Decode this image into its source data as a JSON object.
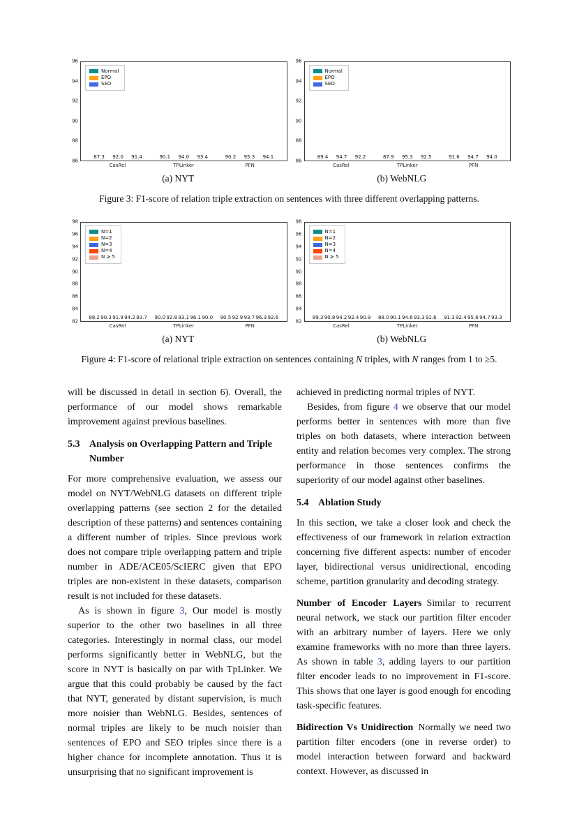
{
  "colors": {
    "teal": "#108C8D",
    "orange": "#FFA013",
    "blue": "#4169E1",
    "orangered": "#FF4500",
    "salmon": "#ECA18A",
    "link": "#3846b8"
  },
  "chart_data": [
    {
      "id": "figure3-nyt",
      "type": "bar",
      "subcaption": "(a) NYT",
      "categories": [
        "CasRel",
        "TPLinker",
        "PFN"
      ],
      "series": [
        {
          "name": "Normal",
          "color": "#108C8D",
          "values": [
            87.3,
            90.1,
            90.2
          ]
        },
        {
          "name": "EPO",
          "color": "#FFA013",
          "values": [
            92.0,
            94.0,
            95.3
          ]
        },
        {
          "name": "SEO",
          "color": "#4169E1",
          "values": [
            91.4,
            93.4,
            94.1
          ]
        }
      ],
      "ylim": [
        86,
        96
      ],
      "yticks": [
        86,
        88,
        90,
        92,
        94,
        96
      ],
      "legend_position": "upper-left",
      "grid": false,
      "xlabel": "",
      "ylabel": ""
    },
    {
      "id": "figure3-webnlg",
      "type": "bar",
      "subcaption": "(b) WebNLG",
      "categories": [
        "CasRel",
        "TPLinker",
        "PFN"
      ],
      "series": [
        {
          "name": "Normal",
          "color": "#108C8D",
          "values": [
            89.4,
            87.9,
            91.6
          ]
        },
        {
          "name": "EPO",
          "color": "#FFA013",
          "values": [
            94.7,
            95.3,
            94.7
          ]
        },
        {
          "name": "SEO",
          "color": "#4169E1",
          "values": [
            92.2,
            92.5,
            94.0
          ]
        }
      ],
      "ylim": [
        86,
        96
      ],
      "yticks": [
        86,
        88,
        90,
        92,
        94,
        96
      ],
      "legend_position": "upper-left",
      "grid": false,
      "xlabel": "",
      "ylabel": ""
    },
    {
      "id": "figure4-nyt",
      "type": "bar",
      "subcaption": "(a) NYT",
      "categories": [
        "CasRel",
        "TPLinker",
        "PFN"
      ],
      "series": [
        {
          "name": "N=1",
          "color": "#108C8D",
          "values": [
            88.2,
            90.0,
            90.5
          ]
        },
        {
          "name": "N=2",
          "color": "#FFA013",
          "values": [
            90.3,
            92.8,
            92.9
          ]
        },
        {
          "name": "N=3",
          "color": "#4169E1",
          "values": [
            91.9,
            93.1,
            93.7
          ]
        },
        {
          "name": "N=4",
          "color": "#FF4500",
          "values": [
            94.2,
            96.1,
            96.3
          ]
        },
        {
          "name": "N ≥ 5",
          "color": "#ECA18A",
          "values": [
            83.7,
            90.0,
            92.6
          ]
        }
      ],
      "ylim": [
        82,
        98
      ],
      "yticks": [
        82,
        84,
        86,
        88,
        90,
        92,
        94,
        96,
        98
      ],
      "legend_position": "upper-left",
      "grid": false,
      "xlabel": "",
      "ylabel": ""
    },
    {
      "id": "figure4-webnlg",
      "type": "bar",
      "subcaption": "(b) WebNLG",
      "categories": [
        "CasRel",
        "TPLinker",
        "PFN"
      ],
      "series": [
        {
          "name": "N=1",
          "color": "#108C8D",
          "values": [
            89.3,
            88.0,
            91.3
          ]
        },
        {
          "name": "N=2",
          "color": "#FFA013",
          "values": [
            90.8,
            90.1,
            92.4
          ]
        },
        {
          "name": "N=3",
          "color": "#4169E1",
          "values": [
            94.2,
            94.6,
            95.6
          ]
        },
        {
          "name": "N=4",
          "color": "#FF4500",
          "values": [
            92.4,
            93.3,
            94.7
          ]
        },
        {
          "name": "N ≥ 5",
          "color": "#ECA18A",
          "values": [
            90.9,
            91.6,
            93.3
          ]
        }
      ],
      "ylim": [
        82,
        98
      ],
      "yticks": [
        82,
        84,
        86,
        88,
        90,
        92,
        94,
        96,
        98
      ],
      "legend_position": "upper-left",
      "grid": false,
      "xlabel": "",
      "ylabel": ""
    }
  ],
  "figure3": {
    "caption_runs": [
      {
        "t": "Figure 3:  F1-score of relation triple extraction on sentences with three different overlapping patterns."
      }
    ]
  },
  "figure4": {
    "caption_runs": [
      {
        "t": "Figure 4:  F1-score of relational triple extraction on sentences containing "
      },
      {
        "t": "N",
        "s": "italic"
      },
      {
        "t": " triples, with "
      },
      {
        "t": "N",
        "s": "italic"
      },
      {
        "t": " ranges from 1 to ≥5."
      }
    ]
  },
  "content": {
    "left_column": [
      {
        "kind": "p",
        "noindent": true,
        "runs": [
          {
            "t": "will be discussed in detail in section 6). Overall, the performance of our model shows remarkable improvement against previous baselines."
          }
        ]
      },
      {
        "kind": "h",
        "num": "5.3",
        "title": "Analysis on Overlapping Pattern and Triple Number"
      },
      {
        "kind": "p",
        "noindent": true,
        "runs": [
          {
            "t": "For more comprehensive evaluation, we assess our model on NYT/WebNLG datasets on different triple overlapping patterns (see section 2 for the detailed description of these patterns) and sentences containing a different number of triples. Since previous work does not compare triple overlapping pattern and triple number in ADE/ACE05/ScIERC given that EPO triples are non-existent in these datasets, comparison result is not included for these datasets."
          }
        ]
      },
      {
        "kind": "p",
        "runs": [
          {
            "t": "As is shown in figure "
          },
          {
            "t": "3",
            "s": "link"
          },
          {
            "t": ", Our model is mostly superior to the other two baselines in all three categories. Interestingly in normal class, our model performs significantly better in WebNLG, but the score in NYT is basically on par with TpLinker. We argue that this could probably be caused by the fact that NYT, generated by distant supervision, is much more noisier than WebNLG. Besides, sentences of normal triples are likely to be much noisier than sentences of EPO and SEO triples since there is a higher chance for incomplete annotation. Thus it is unsurprising that no significant improvement is"
          }
        ]
      }
    ],
    "right_column": [
      {
        "kind": "p",
        "noindent": true,
        "runs": [
          {
            "t": "achieved in predicting normal triples of NYT."
          }
        ]
      },
      {
        "kind": "p",
        "runs": [
          {
            "t": "Besides, from figure "
          },
          {
            "t": "4",
            "s": "link"
          },
          {
            "t": " we observe that our model performs better in sentences with more than five triples on both datasets, where interaction between entity and relation becomes very complex. The strong performance in those sentences confirms the superiority of our model against other baselines."
          }
        ]
      },
      {
        "kind": "h",
        "num": "5.4",
        "title": "Ablation Study"
      },
      {
        "kind": "p",
        "noindent": true,
        "runs": [
          {
            "t": "In this section, we take a closer look and check the effectiveness of our framework in relation extraction concerning five different aspects: number of encoder layer, bidirectional versus unidirectional, encoding scheme, partition granularity and decoding strategy."
          }
        ]
      },
      {
        "kind": "p",
        "noindent": true,
        "spaced": true,
        "runs": [
          {
            "t": "Number of Encoder Layers",
            "s": "bold"
          },
          {
            "t": "Similar to recurrent neural network, we stack our partition filter encoder with an arbitrary number of layers. Here we only examine frameworks with no more than three layers. As shown in table "
          },
          {
            "t": "3",
            "s": "link"
          },
          {
            "t": ", adding layers to our partition filter encoder leads to no improvement in F1-score. This shows that one layer is good enough for encoding task-specific features."
          }
        ]
      },
      {
        "kind": "p",
        "noindent": true,
        "spaced": true,
        "runs": [
          {
            "t": "Bidirection Vs Unidirection",
            "s": "bold"
          },
          {
            "t": "Normally we need two partition filter encoders (one in reverse order) to model interaction between forward and backward context. However, as discussed in"
          }
        ]
      }
    ]
  }
}
